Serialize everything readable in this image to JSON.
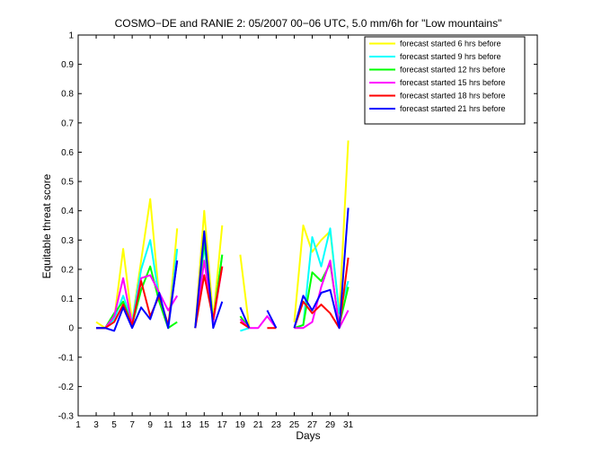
{
  "chart_data": {
    "type": "line",
    "title": "COSMO−DE and RANIE 2: 05/2007 00−06 UTC, 5.0 mm/6h for \"Low mountains\"",
    "xlabel": "Days",
    "ylabel": "Equitable threat score",
    "xlim": [
      1,
      52
    ],
    "ylim": [
      -0.3,
      1
    ],
    "xticks": [
      1,
      3,
      5,
      7,
      9,
      11,
      13,
      15,
      17,
      19,
      21,
      23,
      25,
      27,
      29,
      31
    ],
    "yticks": [
      -0.3,
      -0.2,
      -0.1,
      0,
      0.1,
      0.2,
      0.3,
      0.4,
      0.5,
      0.6,
      0.7,
      0.8,
      0.9,
      1
    ],
    "legend_position": "top-right",
    "series": [
      {
        "name": "forecast started 6 hrs before",
        "color": "#ffff00",
        "values": [
          [
            3,
            0.02
          ],
          [
            4,
            0.0
          ],
          [
            5,
            0.03
          ],
          [
            6,
            0.27
          ],
          [
            7,
            0.02
          ],
          [
            8,
            0.23
          ],
          [
            9,
            0.44
          ],
          [
            10,
            0.1
          ],
          [
            11,
            0.0
          ],
          [
            12,
            0.34
          ],
          null,
          [
            14,
            0.0
          ],
          [
            15,
            0.4
          ],
          [
            16,
            0.03
          ],
          [
            17,
            0.35
          ],
          null,
          [
            19,
            0.25
          ],
          [
            20,
            0.0
          ],
          null,
          [
            25,
            0.02
          ],
          [
            26,
            0.35
          ],
          [
            27,
            0.26
          ],
          [
            28,
            0.3
          ],
          [
            29,
            0.33
          ],
          [
            30,
            0.05
          ],
          [
            31,
            0.64
          ]
        ]
      },
      {
        "name": "forecast started 9 hrs before",
        "color": "#00ffff",
        "values": [
          [
            3,
            0.0
          ],
          [
            4,
            0.0
          ],
          [
            5,
            0.03
          ],
          [
            6,
            0.11
          ],
          [
            7,
            0.02
          ],
          [
            8,
            0.2
          ],
          [
            9,
            0.3
          ],
          [
            10,
            0.1
          ],
          [
            11,
            0.0
          ],
          [
            12,
            0.27
          ],
          null,
          [
            14,
            0.0
          ],
          [
            15,
            0.28
          ],
          [
            16,
            0.02
          ],
          [
            17,
            0.25
          ],
          null,
          [
            19,
            -0.01
          ],
          [
            20,
            0.0
          ],
          null,
          [
            25,
            0.0
          ],
          [
            26,
            0.01
          ],
          [
            27,
            0.31
          ],
          [
            28,
            0.21
          ],
          [
            29,
            0.34
          ],
          [
            30,
            0.05
          ],
          [
            31,
            0.16
          ]
        ]
      },
      {
        "name": "forecast started 12 hrs before",
        "color": "#00ff00",
        "values": [
          [
            3,
            0.0
          ],
          [
            4,
            0.0
          ],
          [
            5,
            0.05
          ],
          [
            6,
            0.09
          ],
          [
            7,
            0.01
          ],
          [
            8,
            0.13
          ],
          [
            9,
            0.21
          ],
          [
            10,
            0.09
          ],
          [
            11,
            0.0
          ],
          [
            12,
            0.02
          ],
          null,
          [
            14,
            0.0
          ],
          [
            15,
            0.3
          ],
          [
            16,
            0.02
          ],
          [
            17,
            0.25
          ],
          null,
          [
            19,
            0.04
          ],
          [
            20,
            0.0
          ],
          null,
          [
            25,
            0.0
          ],
          [
            26,
            0.01
          ],
          [
            27,
            0.19
          ],
          [
            28,
            0.16
          ],
          [
            29,
            0.22
          ],
          [
            30,
            0.01
          ],
          [
            31,
            0.14
          ]
        ]
      },
      {
        "name": "forecast started 15 hrs before",
        "color": "#ff00ff",
        "values": [
          [
            3,
            0.0
          ],
          [
            4,
            0.0
          ],
          [
            5,
            0.04
          ],
          [
            6,
            0.17
          ],
          [
            7,
            0.01
          ],
          [
            8,
            0.17
          ],
          [
            9,
            0.18
          ],
          [
            10,
            0.12
          ],
          [
            11,
            0.06
          ],
          [
            12,
            0.11
          ],
          null,
          [
            14,
            0.0
          ],
          [
            15,
            0.23
          ],
          [
            16,
            0.02
          ],
          [
            17,
            0.21
          ],
          null,
          [
            19,
            0.03
          ],
          [
            20,
            0.0
          ],
          [
            21,
            0.0
          ],
          [
            22,
            0.04
          ],
          [
            23,
            0.0
          ],
          null,
          [
            25,
            0.0
          ],
          [
            26,
            0.0
          ],
          [
            27,
            0.02
          ],
          [
            28,
            0.14
          ],
          [
            29,
            0.23
          ],
          [
            30,
            0.0
          ],
          [
            31,
            0.06
          ]
        ]
      },
      {
        "name": "forecast started 18 hrs before",
        "color": "#ff0000",
        "values": [
          [
            3,
            0.0
          ],
          [
            4,
            0.0
          ],
          [
            5,
            0.02
          ],
          [
            6,
            0.08
          ],
          [
            7,
            0.01
          ],
          [
            8,
            0.16
          ],
          [
            9,
            0.04
          ],
          [
            10,
            0.11
          ],
          [
            11,
            0.01
          ],
          [
            12,
            0.23
          ],
          null,
          [
            14,
            0.0
          ],
          [
            15,
            0.18
          ],
          [
            16,
            0.03
          ],
          [
            17,
            0.21
          ],
          null,
          [
            19,
            0.02
          ],
          [
            20,
            0.0
          ],
          null,
          [
            22,
            0.0
          ],
          [
            23,
            0.0
          ],
          null,
          [
            25,
            0.0
          ],
          [
            26,
            0.09
          ],
          [
            27,
            0.05
          ],
          [
            28,
            0.08
          ],
          [
            29,
            0.05
          ],
          [
            30,
            0.0
          ],
          [
            31,
            0.24
          ]
        ]
      },
      {
        "name": "forecast started 21 hrs before",
        "color": "#0000ff",
        "values": [
          [
            3,
            0.0
          ],
          [
            4,
            0.0
          ],
          [
            5,
            -0.01
          ],
          [
            6,
            0.07
          ],
          [
            7,
            0.0
          ],
          [
            8,
            0.07
          ],
          [
            9,
            0.03
          ],
          [
            10,
            0.12
          ],
          [
            11,
            0.0
          ],
          [
            12,
            0.23
          ],
          null,
          [
            14,
            0.0
          ],
          [
            15,
            0.33
          ],
          [
            16,
            0.0
          ],
          [
            17,
            0.09
          ],
          null,
          [
            19,
            0.07
          ],
          [
            20,
            0.0
          ],
          null,
          [
            22,
            0.06
          ],
          [
            23,
            0.0
          ],
          null,
          [
            25,
            0.0
          ],
          [
            26,
            0.11
          ],
          [
            27,
            0.06
          ],
          [
            28,
            0.12
          ],
          [
            29,
            0.13
          ],
          [
            30,
            0.0
          ],
          [
            31,
            0.41
          ]
        ]
      }
    ]
  }
}
